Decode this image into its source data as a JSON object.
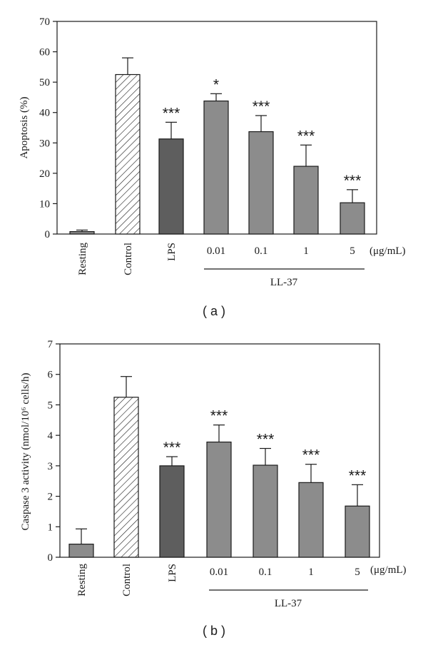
{
  "chart_data": [
    {
      "type": "bar",
      "panel_label": "( a )",
      "title": "",
      "xlabel": "",
      "ylabel": "Apoptosis (%)",
      "ylim": [
        0,
        70
      ],
      "yticks": [
        "0",
        "10",
        "20",
        "30",
        "40",
        "50",
        "60",
        "70"
      ],
      "categories": [
        "Resting",
        "Control",
        "LPS",
        "0.01",
        "0.1",
        "1",
        "5"
      ],
      "values": [
        0.8,
        52.5,
        31.3,
        43.8,
        33.7,
        22.3,
        10.3
      ],
      "errors": [
        0.5,
        5.5,
        5.5,
        2.4,
        5.3,
        7.0,
        4.3
      ],
      "significance": [
        "",
        "",
        "***",
        "*",
        "***",
        "***",
        "***"
      ],
      "bar_styles": [
        "gray",
        "hatched",
        "dark",
        "gray",
        "gray",
        "gray",
        "gray"
      ],
      "unit_label": "(μg/mL)",
      "group_label": "LL-37",
      "colors": {
        "gray": "#8c8c8c",
        "dark": "#5e5e5e",
        "hatched": "#ffffff",
        "stroke": "#1a1a1a"
      }
    },
    {
      "type": "bar",
      "panel_label": "( b )",
      "title": "",
      "xlabel": "",
      "ylabel": "Caspase 3 activity (nmol/10⁶ cells/h)",
      "ylim": [
        0,
        7
      ],
      "yticks": [
        "0",
        "1",
        "2",
        "3",
        "4",
        "5",
        "6",
        "7"
      ],
      "categories": [
        "Resting",
        "Control",
        "LPS",
        "0.01",
        "0.1",
        "1",
        "5"
      ],
      "values": [
        0.43,
        5.25,
        3.0,
        3.78,
        3.02,
        2.45,
        1.68
      ],
      "errors": [
        0.5,
        0.68,
        0.3,
        0.56,
        0.55,
        0.6,
        0.7
      ],
      "significance": [
        "",
        "",
        "***",
        "***",
        "***",
        "***",
        "***"
      ],
      "bar_styles": [
        "gray",
        "hatched",
        "dark",
        "gray",
        "gray",
        "gray",
        "gray"
      ],
      "unit_label": "(μg/mL)",
      "group_label": "LL-37",
      "colors": {
        "gray": "#8c8c8c",
        "dark": "#5e5e5e",
        "hatched": "#ffffff",
        "stroke": "#1a1a1a"
      }
    }
  ]
}
